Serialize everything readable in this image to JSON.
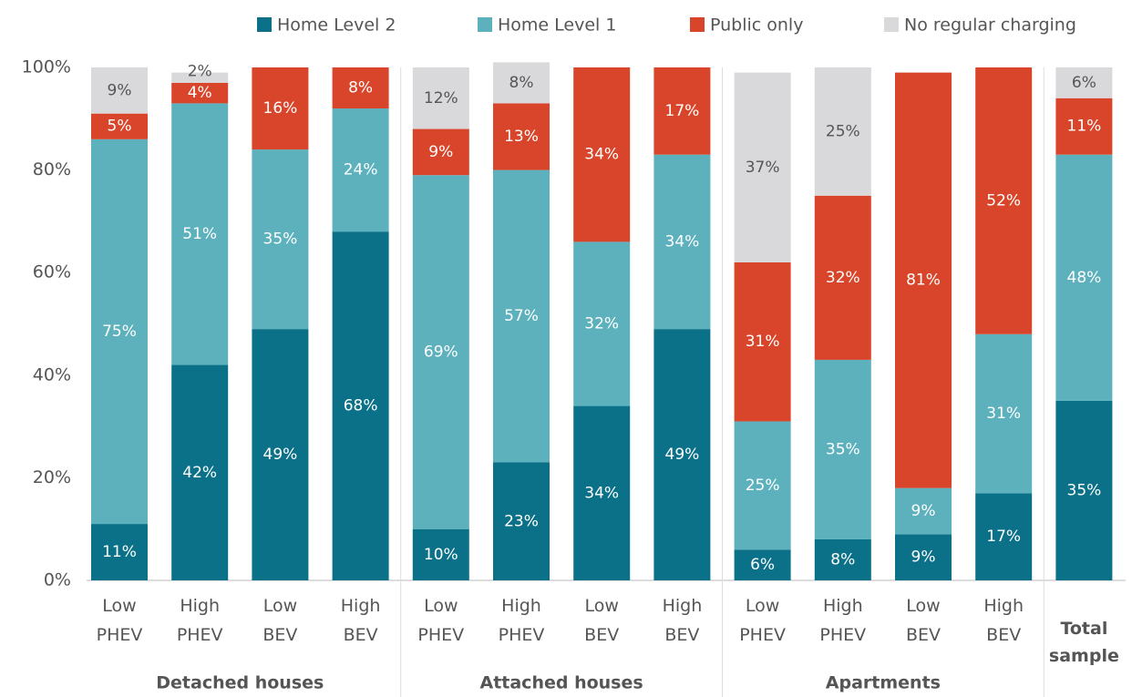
{
  "chart_data": {
    "type": "stacked-bar",
    "categories": [
      "Low PHEV",
      "High PHEV",
      "Low BEV",
      "High BEV",
      "Low PHEV",
      "High PHEV",
      "Low BEV",
      "High BEV",
      "Low PHEV",
      "High PHEV",
      "Low BEV",
      "High BEV",
      "Total sample"
    ],
    "groups": [
      "Detached houses",
      "Attached houses",
      "Apartments"
    ],
    "series": [
      {
        "name": "Home Level 2",
        "color": "#0b7189",
        "values": [
          11,
          42,
          49,
          68,
          10,
          23,
          34,
          49,
          6,
          8,
          9,
          17,
          35
        ],
        "value_labels": [
          "11%",
          "42%",
          "49%",
          "68%",
          "10%",
          "23%",
          "34%",
          "49%",
          "6%",
          "8%",
          "9%",
          "17%",
          "35%"
        ]
      },
      {
        "name": "Home Level 1",
        "color": "#5cb1bd",
        "values": [
          75,
          51,
          35,
          24,
          69,
          57,
          32,
          34,
          25,
          35,
          9,
          31,
          48
        ],
        "value_labels": [
          "75%",
          "51%",
          "35%",
          "24%",
          "69%",
          "57%",
          "32%",
          "34%",
          "25%",
          "35%",
          "9%",
          "31%",
          "48%"
        ]
      },
      {
        "name": "Public only",
        "color": "#d9452a",
        "values": [
          5,
          4,
          16,
          8,
          9,
          13,
          34,
          17,
          31,
          32,
          81,
          52,
          11
        ],
        "value_labels": [
          "5%",
          "4%",
          "16%",
          "8%",
          "9%",
          "13%",
          "34%",
          "17%",
          "31%",
          "32%",
          "81%",
          "52%",
          "11%"
        ]
      },
      {
        "name": "No regular charging",
        "color": "#d9d9db",
        "values": [
          9,
          2,
          null,
          null,
          12,
          8,
          null,
          null,
          37,
          25,
          null,
          null,
          6
        ],
        "value_labels": [
          "9%",
          "2%",
          null,
          null,
          "12%",
          "8%",
          null,
          null,
          "37%",
          "25%",
          null,
          null,
          "6%"
        ]
      }
    ],
    "ylim": [
      0,
      100
    ],
    "yticks": [
      {
        "value": 0,
        "label": "0%"
      },
      {
        "value": 20,
        "label": "20%"
      },
      {
        "value": 40,
        "label": "40%"
      },
      {
        "value": 60,
        "label": "60%"
      },
      {
        "value": 80,
        "label": "80%"
      },
      {
        "value": 100,
        "label": "100%"
      }
    ],
    "legend": "top"
  }
}
